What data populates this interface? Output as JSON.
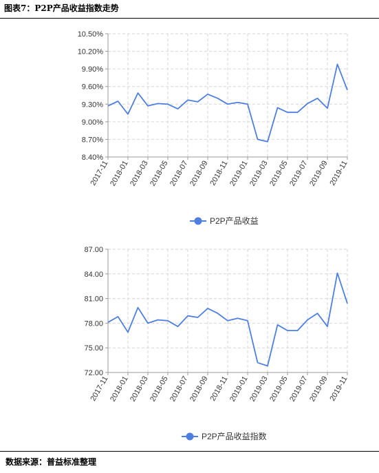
{
  "figure": {
    "title": "图表7：P2P产品收益指数走势",
    "source": "数据来源：普益标准整理"
  },
  "colors": {
    "line": "#4e7fe0",
    "grid": "#d6d6d6",
    "axis": "#999999",
    "text": "#333333"
  },
  "chart_data": [
    {
      "type": "line",
      "title": "",
      "xlabel": "",
      "ylabel": "",
      "legend_position": "bottom-center",
      "grid": true,
      "x": [
        "2017-11",
        "2017-12",
        "2018-01",
        "2018-02",
        "2018-03",
        "2018-04",
        "2018-05",
        "2018-06",
        "2018-07",
        "2018-08",
        "2018-09",
        "2018-10",
        "2018-11",
        "2018-12",
        "2019-01",
        "2019-02",
        "2019-03",
        "2019-04",
        "2019-05",
        "2019-06",
        "2019-07",
        "2019-08",
        "2019-09",
        "2019-10",
        "2019-11"
      ],
      "x_tick_labels": [
        "2017-11",
        "2018-01",
        "2018-03",
        "2018-05",
        "2018-07",
        "2018-09",
        "2018-11",
        "2019-01",
        "2019-03",
        "2019-05",
        "2019-07",
        "2019-09",
        "2019-11"
      ],
      "ylim": [
        8.4,
        10.5
      ],
      "y_ticks": [
        "8.40%",
        "8.70%",
        "9.00%",
        "9.30%",
        "9.60%",
        "9.90%",
        "10.20%",
        "10.50%"
      ],
      "series": [
        {
          "name": "P2P产品收益",
          "values": [
            9.27,
            9.35,
            9.13,
            9.49,
            9.27,
            9.31,
            9.3,
            9.22,
            9.37,
            9.34,
            9.47,
            9.4,
            9.3,
            9.33,
            9.3,
            8.7,
            8.66,
            9.24,
            9.16,
            9.16,
            9.31,
            9.4,
            9.23,
            9.98,
            9.54
          ]
        }
      ]
    },
    {
      "type": "line",
      "title": "",
      "xlabel": "",
      "ylabel": "",
      "legend_position": "bottom-center",
      "grid": true,
      "x": [
        "2017-11",
        "2017-12",
        "2018-01",
        "2018-02",
        "2018-03",
        "2018-04",
        "2018-05",
        "2018-06",
        "2018-07",
        "2018-08",
        "2018-09",
        "2018-10",
        "2018-11",
        "2018-12",
        "2019-01",
        "2019-02",
        "2019-03",
        "2019-04",
        "2019-05",
        "2019-06",
        "2019-07",
        "2019-08",
        "2019-09",
        "2019-10",
        "2019-11"
      ],
      "x_tick_labels": [
        "2017-11",
        "2018-01",
        "2018-03",
        "2018-05",
        "2018-07",
        "2018-09",
        "2018-11",
        "2019-01",
        "2019-03",
        "2019-05",
        "2019-07",
        "2019-09",
        "2019-11"
      ],
      "ylim": [
        72.0,
        87.0
      ],
      "y_ticks": [
        "72.00",
        "75.00",
        "78.00",
        "81.00",
        "84.00",
        "87.00"
      ],
      "series": [
        {
          "name": "P2P产品收益指数",
          "values": [
            78.1,
            78.8,
            76.9,
            79.9,
            78.0,
            78.4,
            78.3,
            77.6,
            78.9,
            78.7,
            79.8,
            79.2,
            78.3,
            78.6,
            78.3,
            73.2,
            72.8,
            77.8,
            77.1,
            77.1,
            78.4,
            79.2,
            77.6,
            84.1,
            80.4
          ]
        }
      ]
    }
  ]
}
